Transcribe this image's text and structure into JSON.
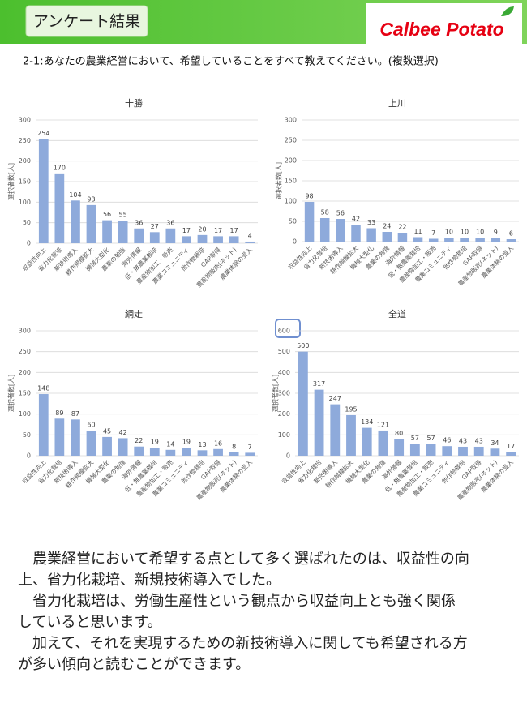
{
  "header": {
    "title": "アンケート結果",
    "logo": "Calbee Potato"
  },
  "question": "2-1:あなたの農業経営において、希望していることをすべて教えてください。(複数選択)",
  "chart_data": [
    {
      "type": "bar",
      "title": "十勝",
      "y_label": "選択者数[人]",
      "categories": [
        "収益性向上",
        "省力化栽培",
        "新技術導入",
        "耕作規模拡大",
        "機械大型化",
        "農業の勉強",
        "海外情報",
        "低・無農薬栽培",
        "農産物加工・販売",
        "農業コミュニティ",
        "他作物栽培",
        "GAP取得",
        "農産物販売(ネット)",
        "農業体験の受入"
      ],
      "values": [
        254,
        170,
        104,
        93,
        56,
        55,
        36,
        27,
        36,
        17,
        20,
        17,
        17,
        4
      ],
      "color": "#8eaadb",
      "ylim": [
        0,
        300
      ],
      "yticks": [
        0,
        50,
        100,
        150,
        200,
        250,
        300
      ],
      "grid": true
    },
    {
      "type": "bar",
      "title": "上川",
      "y_label": "選択者数[人]",
      "categories": [
        "収益性向上",
        "省力化栽培",
        "新技術導入",
        "耕作規模拡大",
        "機械大型化",
        "農業の勉強",
        "海外情報",
        "低・無農薬栽培",
        "農産物加工・販売",
        "農業コミュニティ",
        "他作物栽培",
        "GAP取得",
        "農産物販売(ネット)",
        "農業体験の受入"
      ],
      "values": [
        98,
        58,
        56,
        42,
        33,
        24,
        22,
        11,
        7,
        10,
        10,
        10,
        9,
        6
      ],
      "color": "#8eaadb",
      "ylim": [
        0,
        300
      ],
      "yticks": [
        0,
        50,
        100,
        150,
        200,
        250,
        300
      ],
      "grid": true
    },
    {
      "type": "bar",
      "title": "網走",
      "y_label": "選択者数[人]",
      "categories": [
        "収益性向上",
        "省力化栽培",
        "新技術導入",
        "耕作規模拡大",
        "機械大型化",
        "農業の勉強",
        "海外情報",
        "低・無農薬栽培",
        "農産物加工・販売",
        "農業コミュニティ",
        "他作物栽培",
        "GAP取得",
        "農産物販売(ネット)",
        "農業体験の受入"
      ],
      "values": [
        148,
        89,
        87,
        60,
        45,
        42,
        22,
        19,
        14,
        19,
        13,
        16,
        8,
        7
      ],
      "color": "#8eaadb",
      "ylim": [
        0,
        300
      ],
      "yticks": [
        0,
        50,
        100,
        150,
        200,
        250,
        300
      ],
      "grid": true
    },
    {
      "type": "bar",
      "title": "全道",
      "y_label": "選択者数[人]",
      "categories": [
        "収益性向上",
        "省力化栽培",
        "新技術導入",
        "耕作規模拡大",
        "機械大型化",
        "農業の勉強",
        "海外情報",
        "低・無農薬栽培",
        "農産物加工・販売",
        "農業コミュニティ",
        "他作物栽培",
        "GAP取得",
        "農産物販売(ネット)",
        "農業体験の受入"
      ],
      "values": [
        500,
        317,
        247,
        195,
        134,
        121,
        80,
        57,
        57,
        46,
        43,
        43,
        34,
        17
      ],
      "color": "#8eaadb",
      "ylim": [
        0,
        600
      ],
      "yticks": [
        0,
        100,
        200,
        300,
        400,
        500,
        600
      ],
      "grid": true
    }
  ],
  "summary": [
    "　農業経営において希望する点として多く選ばれたのは、収益性の向",
    "上、省力化栽培、新規技術導入でした。",
    "　省力化栽培は、労働生産性という観点から収益向上とも強く関係",
    "していると思います。",
    "　加えて、それを実現するための新技術導入に関しても希望される方",
    "が多い傾向と読むことができます。"
  ]
}
